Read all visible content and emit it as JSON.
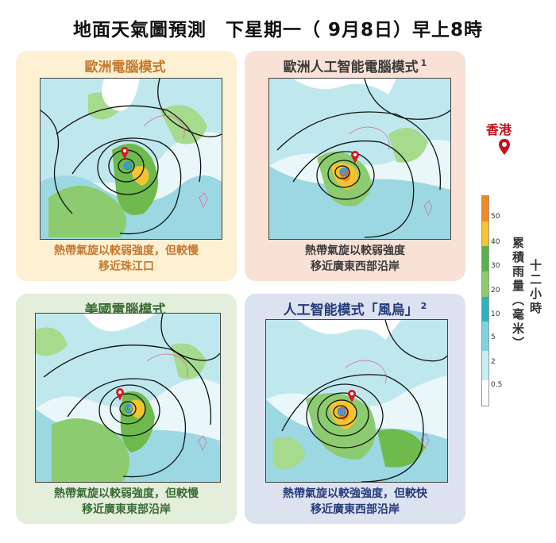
{
  "header": {
    "title": "地面天氣圖預測　下星期一（ 9月8日）早上8時"
  },
  "panels": [
    {
      "title": "歐洲電腦模式",
      "footnote": "",
      "description_line1": "熱帶氣旋以較弱強度，但較慢",
      "description_line2": "移近珠江口",
      "theme_color": "#c5782e",
      "background_color": "#fdf0d3"
    },
    {
      "title": "歐洲人工智能電腦模式",
      "footnote": "1",
      "description_line1": "熱帶氣旋以較弱強度",
      "description_line2": "移近廣東西部沿岸",
      "theme_color": "#3a3a3a",
      "background_color": "#f9e1d6"
    },
    {
      "title": "美國電腦模式",
      "footnote": "",
      "description_line1": "熱帶氣旋以較弱強度，但較慢",
      "description_line2": "移近廣東東部沿岸",
      "theme_color": "#3a6b35",
      "background_color": "#e3eedb"
    },
    {
      "title": "人工智能模式「風烏」",
      "footnote": "2",
      "description_line1": "熱帶氣旋以較強強度，但較快",
      "description_line2": "移近廣東西部沿岸",
      "theme_color": "#243a78",
      "background_color": "#dde2f1"
    }
  ],
  "legend": {
    "location_label": "香港",
    "location_color": "#c3101d",
    "colorbar_ticks": [
      "50",
      "40",
      "30",
      "20",
      "10",
      "5",
      "2",
      "0.5"
    ],
    "title_line1": "十二小時",
    "title_line2": "累積雨量（毫米）"
  }
}
